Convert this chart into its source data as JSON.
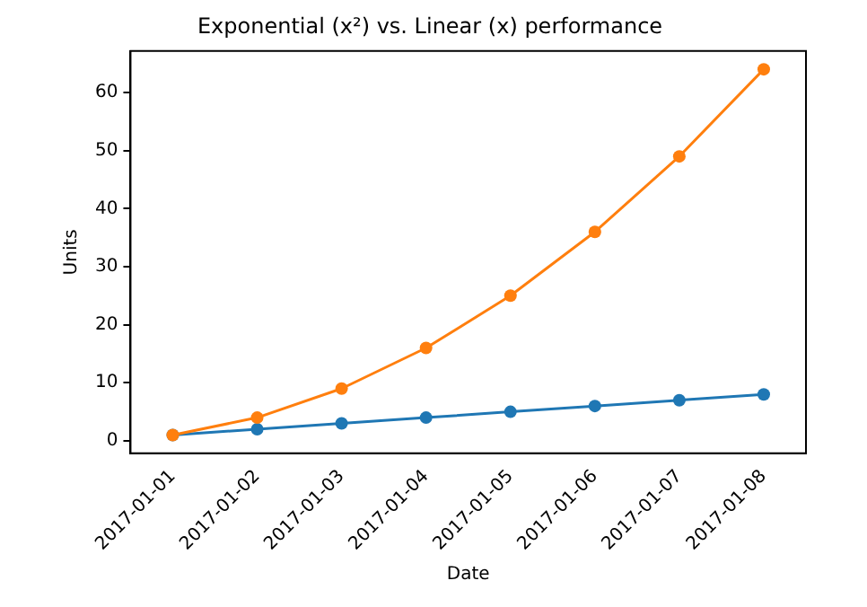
{
  "chart_data": {
    "type": "line",
    "title": "Exponential (x²) vs. Linear (x) performance",
    "xlabel": "Date",
    "ylabel": "Units",
    "categories": [
      "2017-01-01",
      "2017-01-02",
      "2017-01-03",
      "2017-01-04",
      "2017-01-05",
      "2017-01-06",
      "2017-01-07",
      "2017-01-08"
    ],
    "series": [
      {
        "color": "#1f77b4",
        "values": [
          1,
          2,
          3,
          4,
          5,
          6,
          7,
          8
        ]
      },
      {
        "color": "#ff7f0e",
        "values": [
          1,
          4,
          9,
          16,
          25,
          36,
          49,
          64
        ]
      }
    ],
    "ylim": [
      -2.15,
      67.15
    ],
    "yticks": [
      0,
      10,
      20,
      30,
      40,
      50,
      60
    ],
    "grid": false,
    "legend": false,
    "marker": "circle",
    "line_style": "solid"
  }
}
